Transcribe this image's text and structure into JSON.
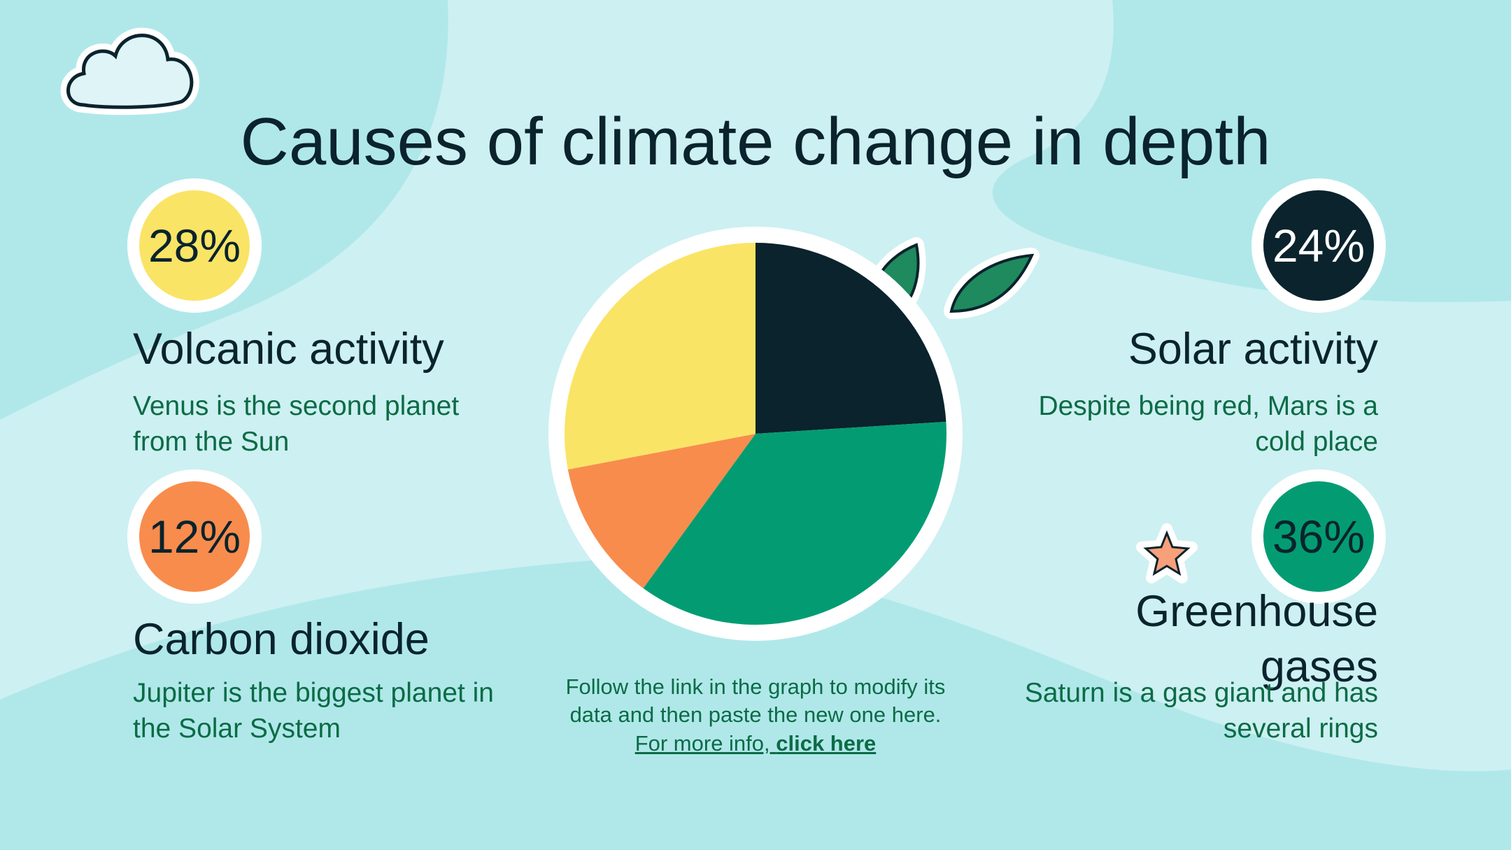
{
  "chart_data": {
    "type": "pie",
    "title": "Causes of climate change in depth",
    "categories": [
      "Solar activity",
      "Greenhouse gases",
      "Carbon dioxide",
      "Volcanic activity"
    ],
    "values": [
      24,
      36,
      12,
      28
    ],
    "value_labels": [
      "24%",
      "36%",
      "12%",
      "28%"
    ],
    "colors": [
      "#0a232c",
      "#039c72",
      "#f88c4d",
      "#fae466"
    ],
    "label_colors": [
      "#ffffff",
      "#0a232c",
      "#0a232c",
      "#0a232c"
    ]
  },
  "descriptions": [
    "Despite being red, Mars is a cold place",
    "Saturn is a gas giant and has several rings",
    "Jupiter is the biggest planet in the Solar System",
    "Venus is the second planet from the Sun"
  ],
  "note": {
    "lines": [
      "Follow the link in the graph to modify its",
      "data and then paste the new one here."
    ],
    "link_prefix": "For more info, ",
    "link_text": "click here"
  }
}
